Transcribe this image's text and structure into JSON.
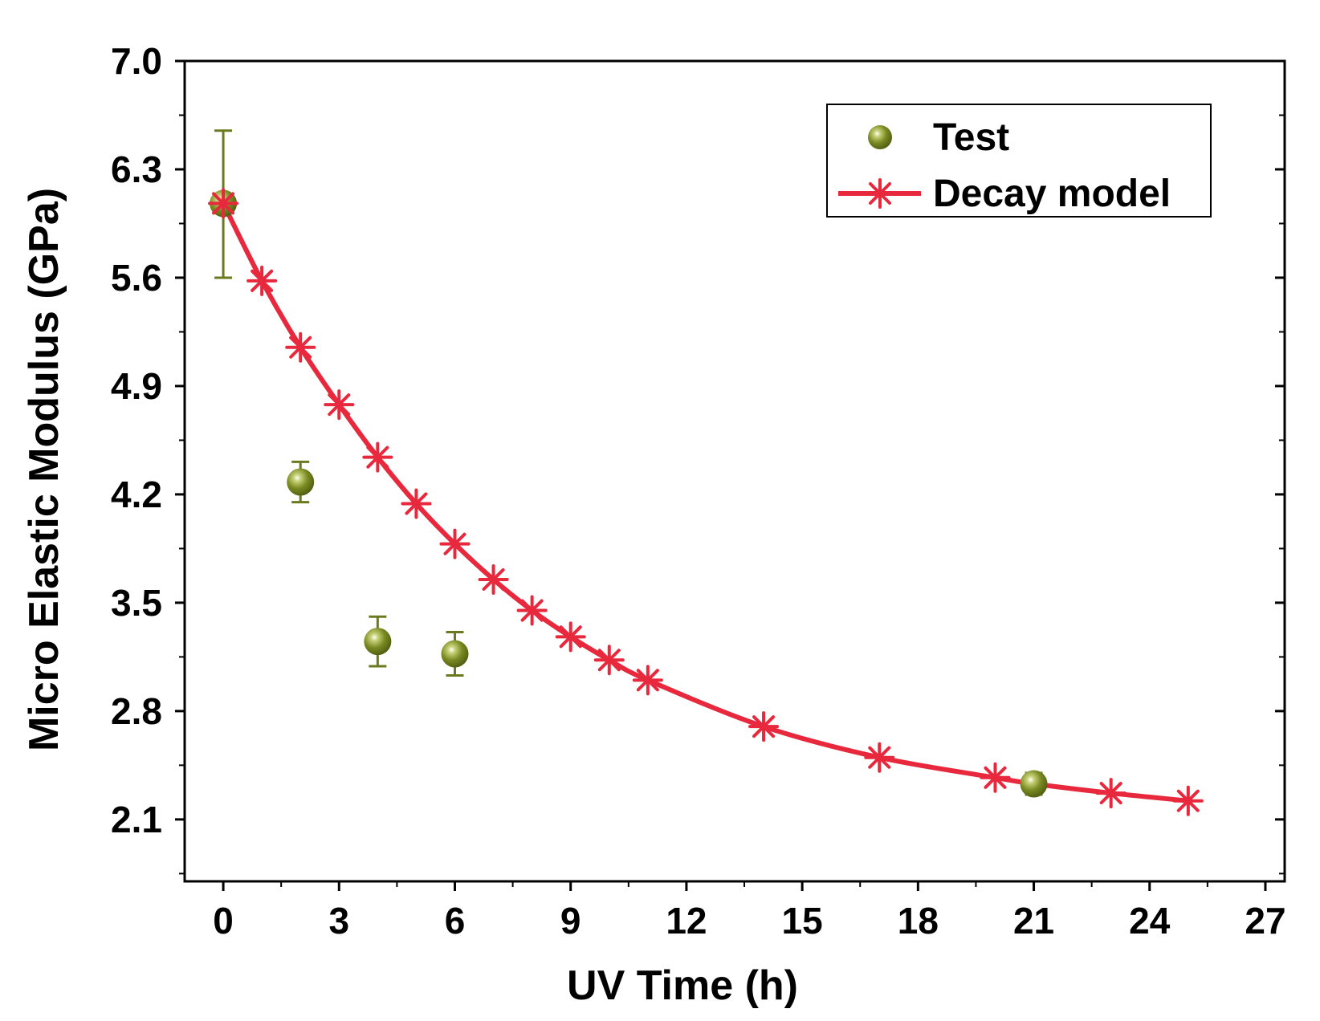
{
  "colors": {
    "test": "#6b7a1e",
    "model": "#e8283c",
    "axis": "#000000"
  },
  "legend": {
    "position": "top-right",
    "test_label": "Test",
    "model_label": "Decay model"
  },
  "chart_data": {
    "type": "scatter",
    "xlabel": "UV Time (h)",
    "ylabel": "Micro Elastic Modulus (GPa)",
    "xlim": [
      -1,
      27.5
    ],
    "ylim": [
      1.7,
      7.0
    ],
    "xticks": [
      0,
      3,
      6,
      9,
      12,
      15,
      18,
      21,
      24,
      27
    ],
    "xtick_labels": [
      "0",
      "3",
      "6",
      "9",
      "12",
      "15",
      "18",
      "21",
      "24",
      "27"
    ],
    "yticks": [
      2.1,
      2.8,
      3.5,
      4.2,
      4.9,
      5.6,
      6.3,
      7.0
    ],
    "ytick_labels": [
      "2.1",
      "2.8",
      "3.5",
      "4.2",
      "4.9",
      "5.6",
      "6.3",
      "7.0"
    ],
    "series": [
      {
        "name": "Test",
        "kind": "scatter-errorbar",
        "x": [
          0,
          2,
          4,
          6,
          21
        ],
        "y": [
          6.08,
          4.28,
          3.25,
          3.17,
          2.33
        ],
        "err_low": [
          0.48,
          0.13,
          0.16,
          0.14,
          0.07
        ],
        "err_high": [
          0.47,
          0.13,
          0.16,
          0.14,
          0.07
        ]
      },
      {
        "name": "Decay model",
        "kind": "line-markers",
        "x": [
          0,
          1,
          2,
          3,
          4,
          5,
          6,
          7,
          8,
          9,
          10,
          11,
          14,
          17,
          20,
          21,
          23,
          25
        ],
        "y": [
          6.08,
          5.58,
          5.15,
          4.78,
          4.44,
          4.14,
          3.88,
          3.65,
          3.45,
          3.28,
          3.13,
          3.0,
          2.7,
          2.5,
          2.37,
          2.33,
          2.27,
          2.22
        ],
        "marker_x": [
          0,
          1,
          2,
          3,
          4,
          5,
          6,
          7,
          8,
          9,
          10,
          11,
          14,
          17,
          20,
          23,
          25
        ],
        "marker_y": [
          6.08,
          5.58,
          5.15,
          4.78,
          4.44,
          4.14,
          3.88,
          3.65,
          3.45,
          3.28,
          3.13,
          3.0,
          2.7,
          2.5,
          2.37,
          2.27,
          2.22
        ]
      }
    ]
  }
}
